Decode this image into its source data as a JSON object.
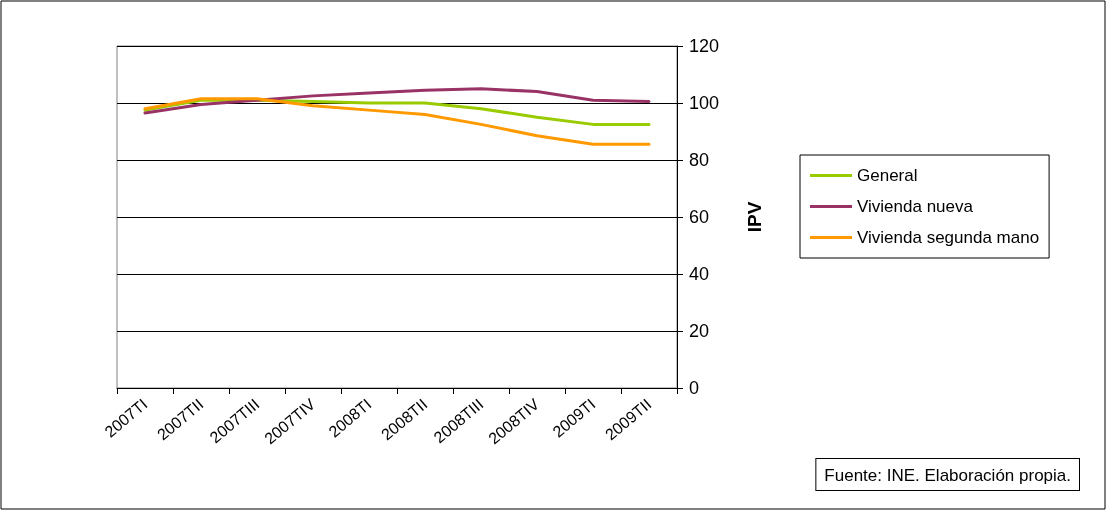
{
  "chart_data": {
    "type": "line",
    "ylabel": "IPV",
    "categories": [
      "2007TI",
      "2007TII",
      "2007TIII",
      "2007TIV",
      "2008TI",
      "2008TII",
      "2008TIII",
      "2008TIV",
      "2009TI",
      "2009TII"
    ],
    "series": [
      {
        "name": "General",
        "color": "#99cc00",
        "values": [
          97.5,
          101,
          101,
          100.5,
          100,
          100,
          98,
          95,
          92.5,
          92.5
        ]
      },
      {
        "name": "Vivienda nueva",
        "color": "#993366",
        "values": [
          96.5,
          99.5,
          101,
          102.5,
          103.5,
          104.5,
          105,
          104,
          101,
          100.5
        ]
      },
      {
        "name": "Vivienda segunda mano",
        "color": "#ff9900",
        "values": [
          98,
          101.5,
          101.5,
          99,
          97.5,
          96,
          92.5,
          88.5,
          85.5,
          85.5
        ]
      }
    ],
    "ylim": [
      0,
      120
    ],
    "yticks": [
      0,
      20,
      40,
      60,
      80,
      100,
      120
    ],
    "grid": "y",
    "legend": "right",
    "marker": "none",
    "line_style": "solid",
    "annotations": [
      "Fuente: INE. Elaboración propia."
    ]
  }
}
